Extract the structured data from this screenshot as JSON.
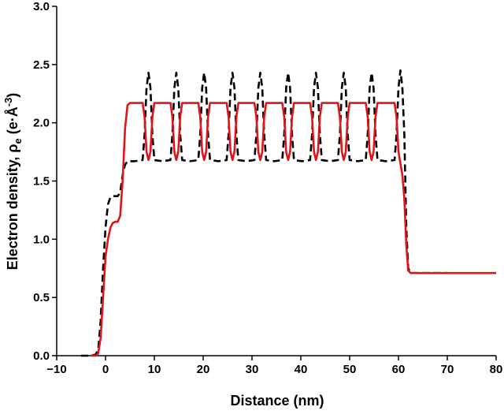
{
  "chart_data": {
    "type": "line",
    "xlabel": "Distance (nm)",
    "ylabel": [
      "Electron density, ρ",
      "e",
      " (e·Å",
      "-3",
      ")"
    ],
    "xlim": [
      -10,
      80
    ],
    "ylim": [
      0,
      3.0
    ],
    "xticks": [
      {
        "value": -10,
        "label": "−10"
      },
      0,
      10,
      20,
      30,
      40,
      50,
      60,
      70,
      80
    ],
    "yticks": [
      {
        "value": 0,
        "label": "0.0"
      },
      {
        "value": 0.5,
        "label": "0.5"
      },
      {
        "value": 1,
        "label": "1.0"
      },
      {
        "value": 1.5,
        "label": "1.5"
      },
      {
        "value": 2,
        "label": "2.0"
      },
      {
        "value": 2.5,
        "label": "2.5"
      },
      {
        "value": 3,
        "label": "3.0"
      }
    ],
    "grid": false,
    "x": [
      -10,
      -5,
      -3,
      -2,
      -1.5,
      -1,
      -0.5,
      0,
      0.5,
      1,
      1.5,
      2,
      2.5,
      3,
      3.5,
      4,
      4.5,
      5,
      6,
      7.6,
      8.0,
      8.4,
      8.8,
      9.2,
      9.6,
      10.0,
      11.65,
      13.3,
      13.7,
      14.1,
      14.5,
      14.9,
      15.3,
      15.7,
      17.35,
      19.0,
      19.4,
      19.8,
      20.2,
      20.6,
      21.0,
      21.4,
      23.1,
      24.8,
      25.2,
      25.6,
      26.0,
      26.4,
      26.8,
      27.2,
      28.85,
      30.5,
      30.9,
      31.3,
      31.7,
      32.1,
      32.5,
      32.9,
      34.55,
      36.2,
      36.6,
      37.0,
      37.4,
      37.8,
      38.2,
      38.6,
      40.25,
      41.9,
      42.3,
      42.7,
      43.1,
      43.5,
      43.9,
      44.3,
      45.95,
      47.6,
      48.0,
      48.4,
      48.8,
      49.2,
      49.6,
      50.0,
      51.65,
      53.3,
      53.7,
      54.1,
      54.5,
      54.9,
      55.3,
      55.7,
      57.5,
      59.2,
      59.6,
      60.0,
      60.4,
      60.8,
      61.2,
      61.6,
      62.0,
      62.5,
      65,
      70,
      75,
      80
    ],
    "series": [
      {
        "color": "#000000",
        "linestyle": "dashed",
        "values": [
          null,
          0,
          0,
          0.01,
          0.05,
          0.3,
          0.75,
          1.1,
          1.3,
          1.36,
          1.37,
          1.37,
          1.37,
          1.4,
          1.55,
          1.64,
          1.67,
          1.67,
          1.67,
          1.68,
          1.9,
          2.3,
          2.43,
          2.3,
          1.9,
          1.68,
          1.67,
          1.68,
          1.9,
          2.3,
          2.43,
          2.3,
          1.9,
          1.68,
          1.67,
          1.68,
          1.9,
          2.3,
          2.43,
          2.3,
          1.9,
          1.68,
          1.67,
          1.68,
          1.9,
          2.3,
          2.43,
          2.3,
          1.9,
          1.68,
          1.67,
          1.68,
          1.9,
          2.3,
          2.43,
          2.3,
          1.9,
          1.68,
          1.67,
          1.68,
          1.9,
          2.3,
          2.43,
          2.3,
          1.9,
          1.68,
          1.67,
          1.68,
          1.9,
          2.3,
          2.43,
          2.3,
          1.9,
          1.68,
          1.67,
          1.68,
          1.9,
          2.3,
          2.43,
          2.3,
          1.9,
          1.68,
          1.67,
          1.68,
          1.9,
          2.3,
          2.43,
          2.3,
          1.9,
          1.68,
          1.67,
          1.68,
          1.9,
          2.3,
          2.45,
          2.3,
          1.9,
          1.1,
          0.75,
          0.71,
          0.71,
          0.71,
          null,
          null
        ]
      },
      {
        "color": "#e0141b",
        "linestyle": "solid",
        "values": [
          null,
          null,
          0,
          0,
          0.02,
          0.15,
          0.5,
          0.85,
          1.0,
          1.1,
          1.14,
          1.15,
          1.15,
          1.2,
          1.5,
          1.95,
          2.15,
          2.17,
          2.17,
          2.17,
          2.05,
          1.75,
          1.68,
          1.75,
          2.05,
          2.17,
          2.17,
          2.17,
          2.05,
          1.75,
          1.68,
          1.75,
          2.05,
          2.17,
          2.17,
          2.17,
          2.05,
          1.75,
          1.68,
          1.75,
          2.05,
          2.17,
          2.17,
          2.17,
          2.05,
          1.75,
          1.68,
          1.75,
          2.05,
          2.17,
          2.17,
          2.17,
          2.05,
          1.75,
          1.68,
          1.75,
          2.05,
          2.17,
          2.17,
          2.17,
          2.05,
          1.75,
          1.68,
          1.75,
          2.05,
          2.17,
          2.17,
          2.17,
          2.05,
          1.75,
          1.68,
          1.75,
          2.05,
          2.17,
          2.17,
          2.17,
          2.05,
          1.75,
          1.68,
          1.75,
          2.05,
          2.17,
          2.17,
          2.17,
          2.05,
          1.75,
          1.68,
          1.75,
          2.05,
          2.17,
          2.17,
          2.17,
          2.05,
          1.75,
          1.65,
          1.55,
          1.35,
          0.95,
          0.73,
          0.71,
          0.71,
          0.71,
          0.71,
          0.71
        ]
      }
    ]
  }
}
